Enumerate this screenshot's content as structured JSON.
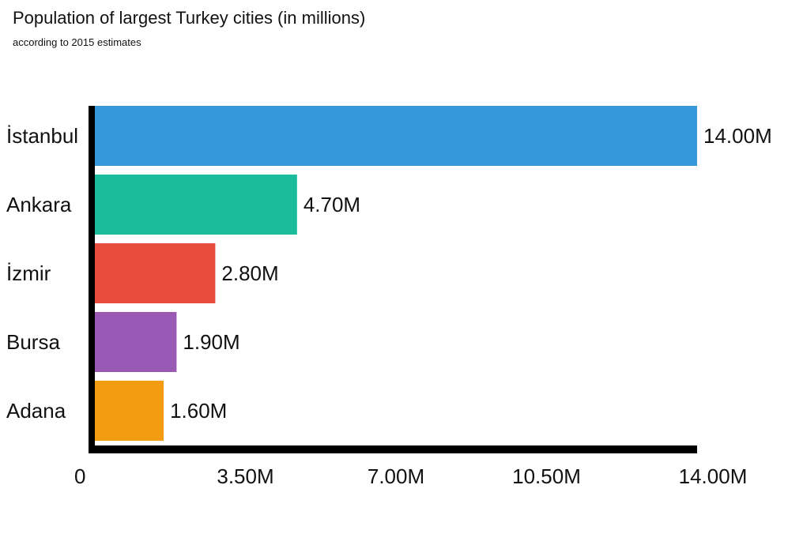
{
  "chart_data": {
    "type": "bar",
    "orientation": "horizontal",
    "title": "Population of largest Turkey cities (in millions)",
    "subtitle": "according to 2015 estimates",
    "categories": [
      "İstanbul",
      "Ankara",
      "İzmir",
      "Bursa",
      "Adana"
    ],
    "values": [
      14.0,
      4.7,
      2.8,
      1.9,
      1.6
    ],
    "value_labels": [
      "14.00M",
      "4.70M",
      "2.80M",
      "1.90M",
      "1.60M"
    ],
    "colors": [
      "#3498db",
      "#1abc9c",
      "#e74c3c",
      "#9b59b6",
      "#f39c12"
    ],
    "xlim": [
      0,
      14
    ],
    "xticks": [
      0,
      3.5,
      7,
      10.5,
      14
    ],
    "xtick_labels": [
      "0",
      "3.50M",
      "7.00M",
      "10.50M",
      "14.00M"
    ],
    "grid": false,
    "legend": "none"
  }
}
